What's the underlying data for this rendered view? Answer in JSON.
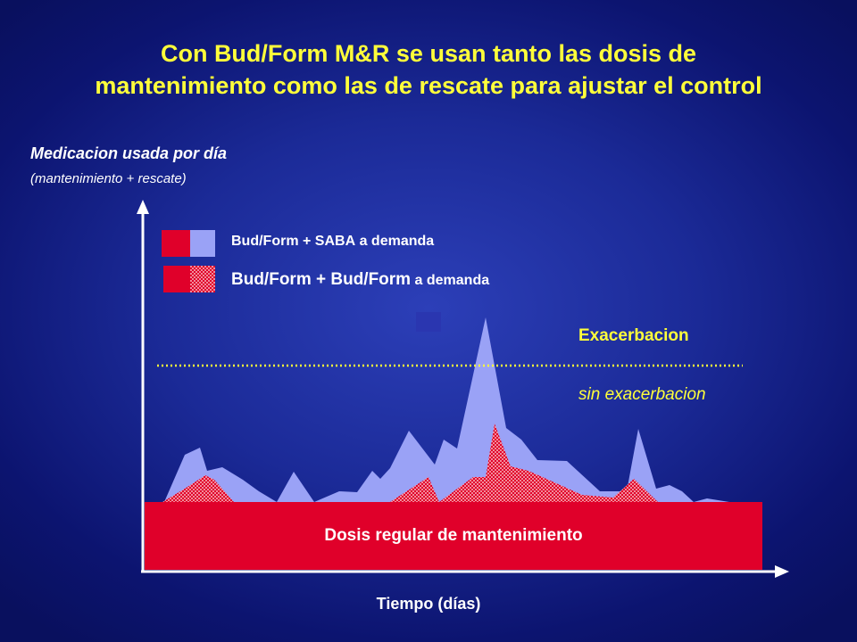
{
  "title_line1": "Con Bud/Form M&R se usan tanto las dosis de",
  "title_line2": "mantenimiento como las de rescate para ajustar el control",
  "chart_data": {
    "type": "area",
    "ylabel": "Medicacion usada por día",
    "ylabel_sub": "(mantenimiento + rescate)",
    "xlabel": "Tiempo (días)",
    "legend": [
      {
        "name_main": "Bud/Form + SABA",
        "name_suffix": "a demanda",
        "colors": [
          "#e0002a",
          "#9aa2f6"
        ]
      },
      {
        "name_main": "Bud/Form + Bud/Form",
        "name_suffix": "a demanda",
        "colors": [
          "#e0002a",
          "#e0002a"
        ],
        "pattern": "hatched"
      }
    ],
    "threshold": {
      "y": 153,
      "label_above": "Exacerbacion",
      "label_below": "sin exacerbacion",
      "color": "#ffff3a"
    },
    "baseline": {
      "y": 0,
      "label": "Dosis regular de mantenimiento",
      "color": "#e0002a"
    },
    "series": [
      {
        "name": "Bud/Form + SABA a demanda",
        "color": "#9aa2f6",
        "x": [
          0,
          22,
          45,
          62,
          70,
          87,
          110,
          128,
          148,
          167,
          190,
          218,
          238,
          255,
          264,
          275,
          296,
          325,
          335,
          350,
          367,
          382,
          405,
          422,
          440,
          473,
          510,
          540,
          553,
          573,
          588,
          602,
          615,
          630,
          655,
          692
        ],
        "y": [
          0,
          0,
          53,
          61,
          35,
          39,
          25,
          12,
          0,
          34,
          0,
          12,
          11,
          35,
          26,
          38,
          80,
          42,
          70,
          60,
          138,
          207,
          83,
          70,
          47,
          46,
          12,
          12,
          82,
          15,
          19,
          12,
          0,
          4,
          0,
          0
        ]
      },
      {
        "name": "Bud/Form + Bud/Form a demanda",
        "color": "#e0002a",
        "x": [
          0,
          20,
          45,
          68,
          78,
          100,
          275,
          318,
          330,
          368,
          382,
          392,
          410,
          430,
          490,
          525,
          548,
          575,
          692
        ],
        "y": [
          0,
          0,
          15,
          30,
          25,
          0,
          0,
          28,
          0,
          28,
          28,
          88,
          40,
          35,
          8,
          5,
          26,
          0,
          0
        ]
      }
    ]
  }
}
